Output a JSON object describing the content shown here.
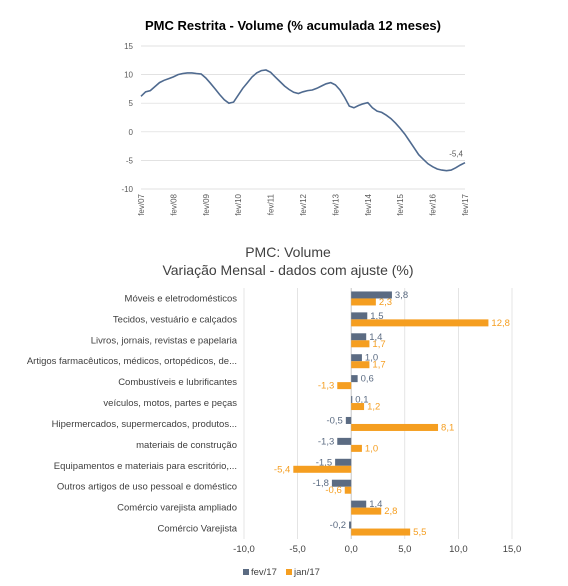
{
  "colors": {
    "line": "#4f6a8f",
    "grey_series": "#5b6b82",
    "orange_series": "#f59e20",
    "grid": "#d9d9d9"
  },
  "chart_data": [
    {
      "type": "line",
      "title": "PMC Restrita - Volume (% acumulada 12 meses)",
      "yticks": [
        "15",
        "10",
        "5",
        "0",
        "-5",
        "-10"
      ],
      "ylim": [
        -10,
        15
      ],
      "xticks": [
        "fev/07",
        "fev/08",
        "fev/09",
        "fev/10",
        "fev/11",
        "fev/12",
        "fev/13",
        "fev/14",
        "fev/15",
        "fev/16",
        "fev/17"
      ],
      "last_label": "-5,4",
      "series": [
        {
          "values": [
            6.2,
            7.0,
            7.2,
            7.9,
            8.6,
            9.0,
            9.3,
            9.6,
            10.0,
            10.2,
            10.3,
            10.3,
            10.2,
            10.1,
            9.4,
            8.5,
            7.5,
            6.5,
            5.6,
            5.0,
            5.2,
            6.4,
            7.6,
            8.6,
            9.6,
            10.3,
            10.7,
            10.8,
            10.4,
            9.6,
            8.8,
            8.0,
            7.4,
            6.9,
            6.7,
            7.0,
            7.2,
            7.3,
            7.6,
            8.0,
            8.4,
            8.6,
            8.2,
            7.3,
            6.0,
            4.5,
            4.2,
            4.6,
            4.9,
            5.1,
            4.2,
            3.6,
            3.4,
            2.9,
            2.3,
            1.5,
            0.6,
            -0.4,
            -1.6,
            -2.8,
            -4.0,
            -4.8,
            -5.6,
            -6.1,
            -6.5,
            -6.7,
            -6.8,
            -6.7,
            -6.3,
            -5.8,
            -5.4
          ]
        }
      ]
    },
    {
      "type": "bar",
      "title": "PMC: Volume",
      "subtitle": "Variação Mensal - dados com ajuste (%)",
      "xlim": [
        -10,
        15
      ],
      "xticks": [
        "-10,0",
        "-5,0",
        "0,0",
        "5,0",
        "10,0",
        "15,0"
      ],
      "categories": [
        "Móveis e eletrodomésticos",
        "Tecidos, vestuário e calçados",
        "Livros, jornais, revistas e papelaria",
        "Artigos farmacêuticos, médicos, ortopédicos, de...",
        "Combustíveis e lubrificantes",
        "veículos, motos, partes e peças",
        "Hipermercados, supermercados, produtos...",
        "materiais de construção",
        "Equipamentos e materiais para escritório,...",
        "Outros artigos de uso pessoal e doméstico",
        "Comércio varejista ampliado",
        "Comércio Varejista"
      ],
      "series": [
        {
          "name": "fev/17",
          "values": [
            3.8,
            1.5,
            1.4,
            1.0,
            0.6,
            0.1,
            -0.5,
            -1.3,
            -1.5,
            -1.8,
            1.4,
            -0.2
          ],
          "labels": [
            "3,8",
            "1,5",
            "1,4",
            "1,0",
            "0,6",
            "0,1",
            "-0,5",
            "-1,3",
            "-1,5",
            "-1,8",
            "1,4",
            "-0,2"
          ]
        },
        {
          "name": "jan/17",
          "values": [
            2.3,
            12.8,
            1.7,
            1.7,
            -1.3,
            1.2,
            8.1,
            1.0,
            -5.4,
            -0.6,
            2.8,
            5.5
          ],
          "labels": [
            "2,3",
            "12,8",
            "1,7",
            "1,7",
            "-1,3",
            "1,2",
            "8,1",
            "1,0",
            "-5,4",
            "-0,6",
            "2,8",
            "5,5"
          ]
        }
      ],
      "legend_position": "bottom"
    }
  ]
}
